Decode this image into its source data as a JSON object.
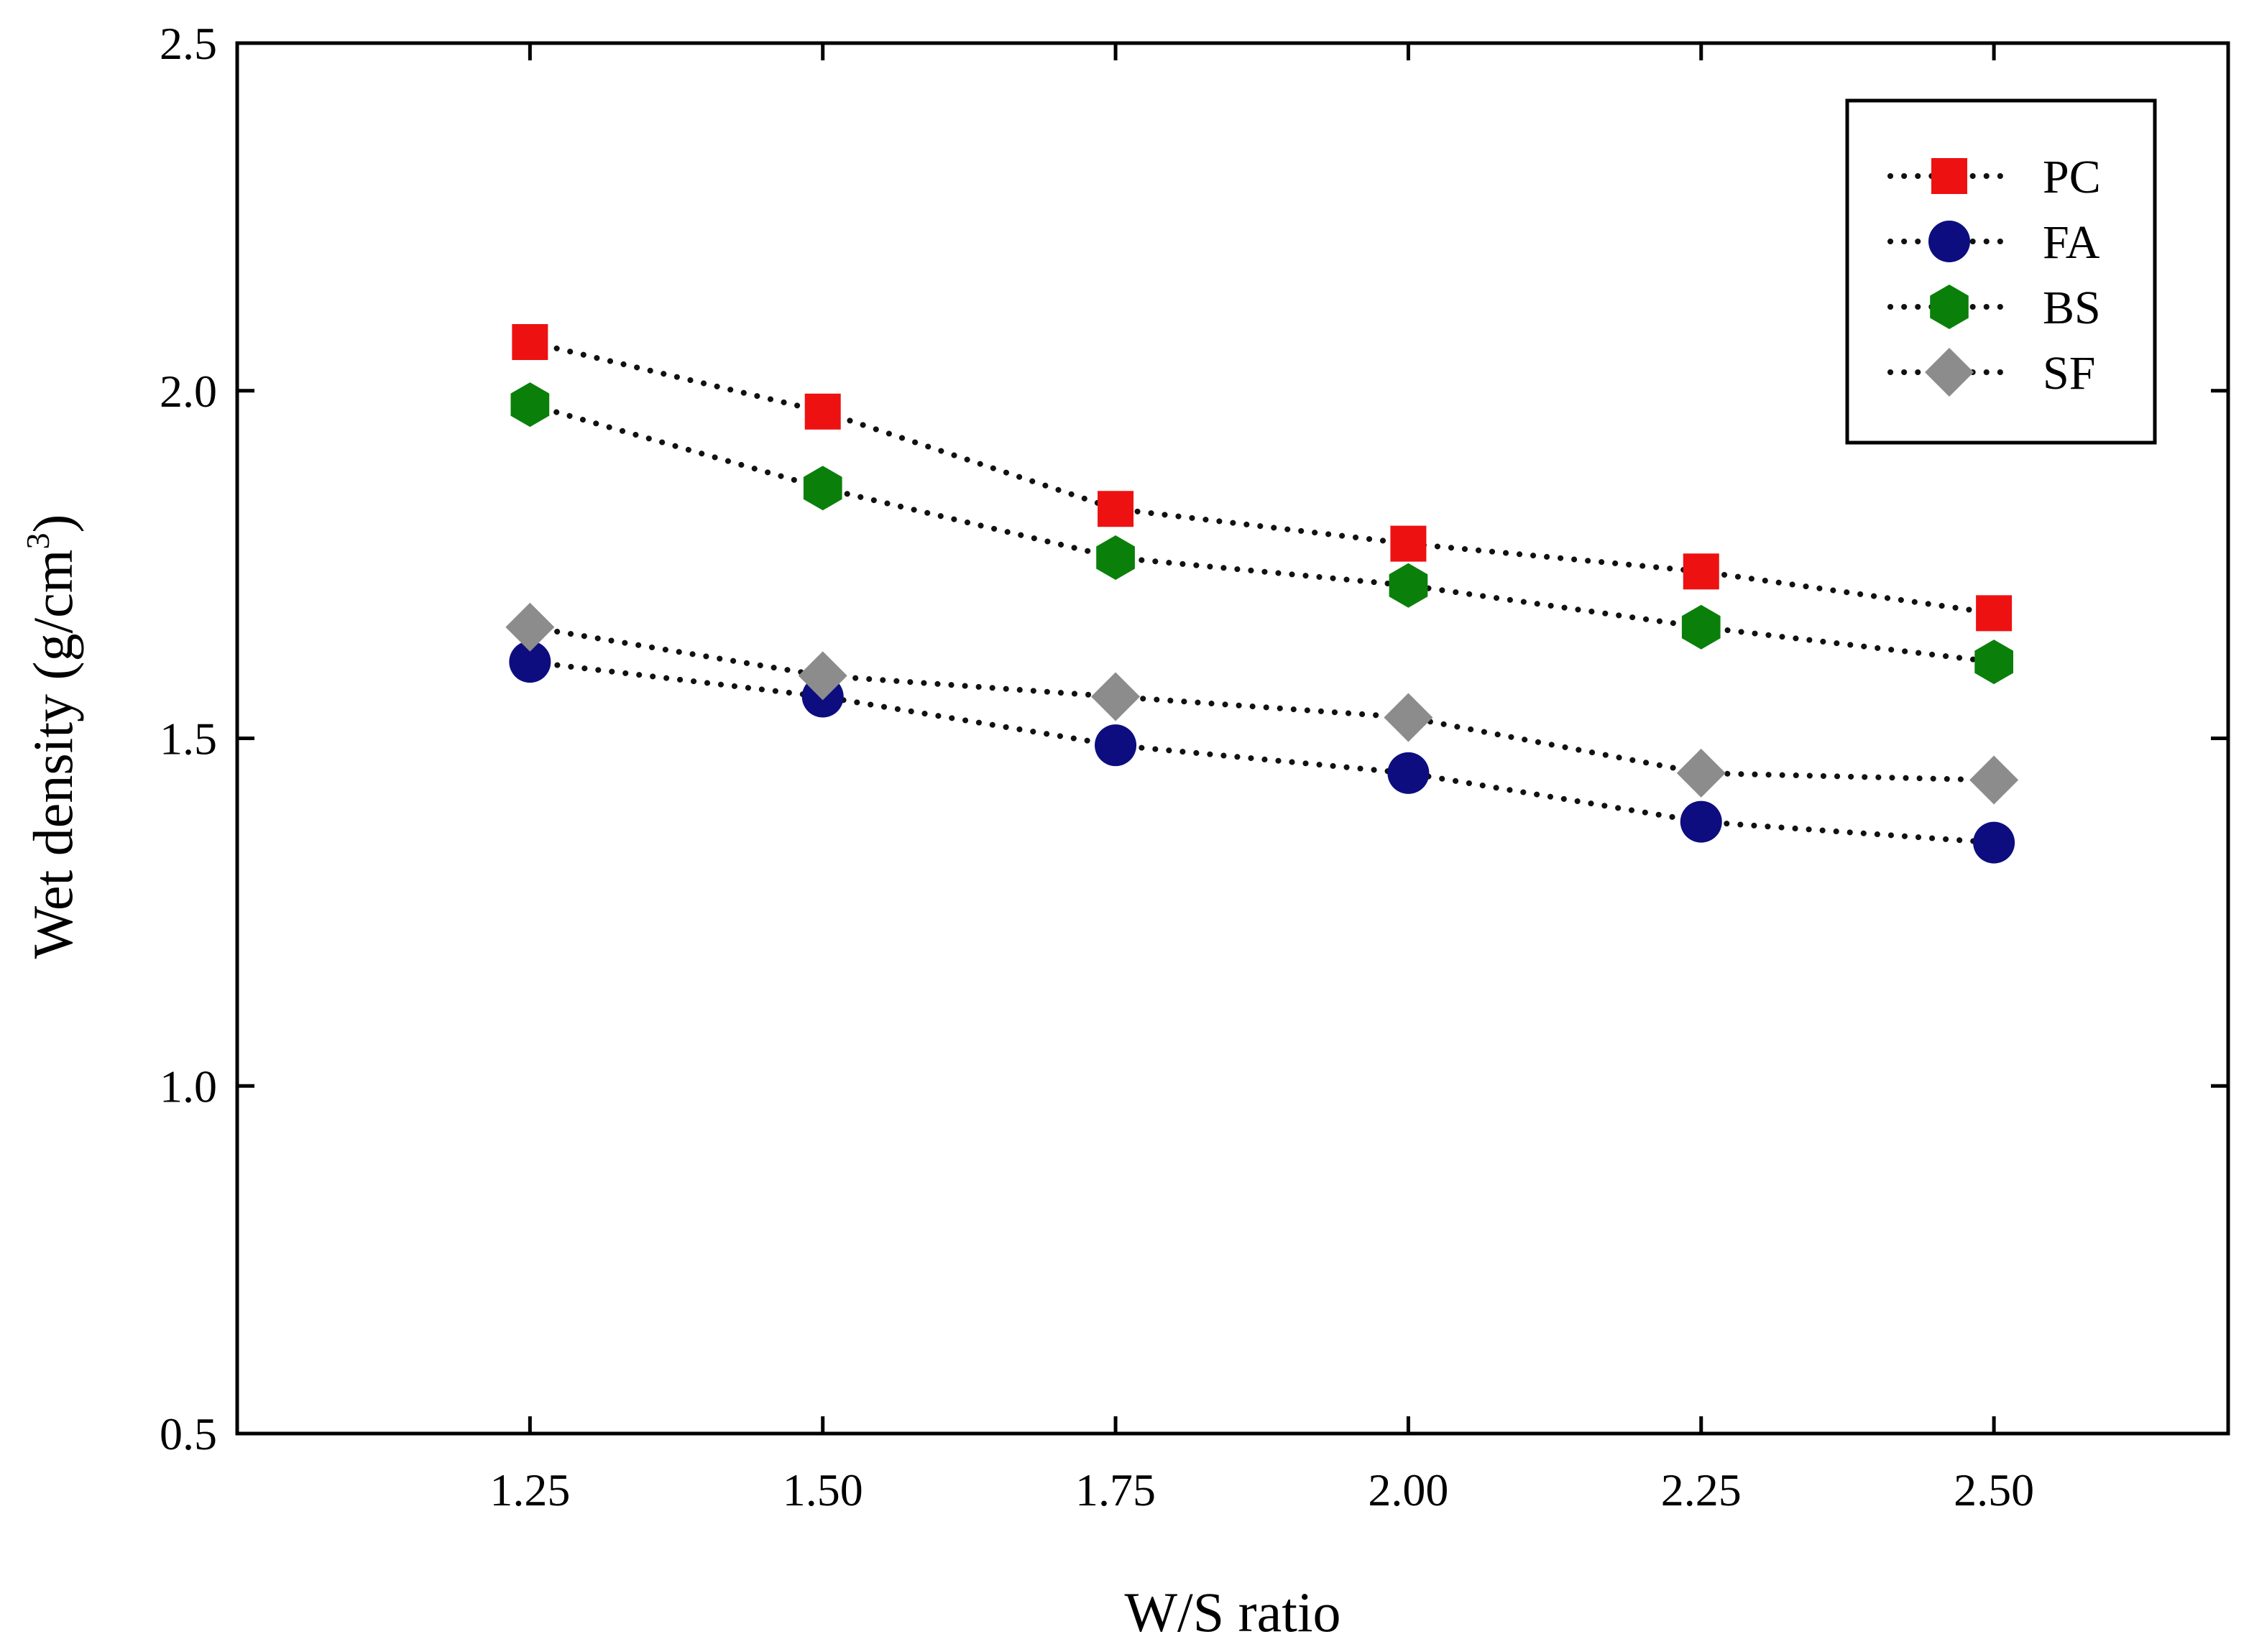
{
  "chart_data": {
    "type": "line",
    "title": "",
    "xlabel": "W/S ratio",
    "ylabel": "Wet density (g/cm",
    "ylabel_superscript": "3",
    "ylabel_close": ")",
    "x": [
      1.25,
      1.5,
      1.75,
      2.0,
      2.25,
      2.5
    ],
    "x_tick_labels": [
      "1.25",
      "1.50",
      "1.75",
      "2.00",
      "2.25",
      "2.50"
    ],
    "y_tick_values": [
      0.5,
      1.0,
      1.5,
      2.0,
      2.5
    ],
    "y_tick_labels": [
      "0.5",
      "1.0",
      "1.5",
      "2.0",
      "2.5"
    ],
    "xlim": [
      1.0,
      2.7
    ],
    "ylim": [
      0.5,
      2.5
    ],
    "grid": false,
    "legend_position": "top-right",
    "line_style": "dotted",
    "series": [
      {
        "name": "PC",
        "marker": "square",
        "color": "#ee1111",
        "values": [
          2.07,
          1.97,
          1.83,
          1.78,
          1.74,
          1.68
        ]
      },
      {
        "name": "FA",
        "marker": "circle",
        "color": "#0d0d80",
        "values": [
          1.61,
          1.56,
          1.49,
          1.45,
          1.38,
          1.35
        ]
      },
      {
        "name": "BS",
        "marker": "hexagon",
        "color": "#0a800a",
        "values": [
          1.98,
          1.86,
          1.76,
          1.72,
          1.66,
          1.61
        ]
      },
      {
        "name": "SF",
        "marker": "diamond",
        "color": "#8c8c8c",
        "values": [
          1.66,
          1.59,
          1.56,
          1.53,
          1.45,
          1.44
        ]
      }
    ]
  }
}
